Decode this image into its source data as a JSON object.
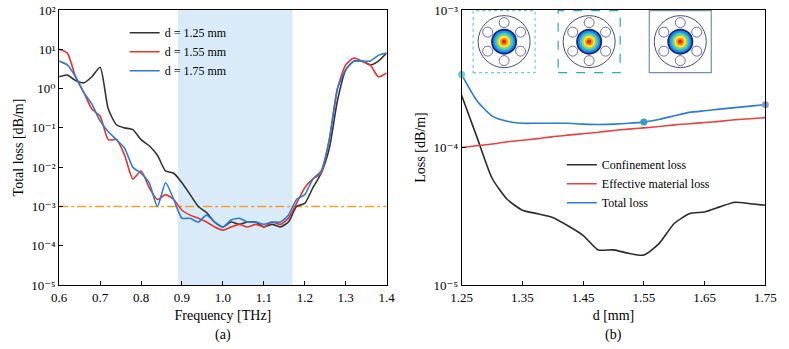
{
  "chart_data": [
    {
      "type": "line",
      "panel_label": "(a)",
      "x_label": "Frequency [THz]",
      "y_label": "Total loss [dB/m]",
      "log": "y",
      "grid": false,
      "legend": "upper left",
      "x": [
        0.6,
        0.62,
        0.64,
        0.66,
        0.68,
        0.7,
        0.72,
        0.74,
        0.76,
        0.78,
        0.8,
        0.82,
        0.84,
        0.86,
        0.88,
        0.9,
        0.92,
        0.94,
        0.96,
        0.98,
        1.0,
        1.02,
        1.04,
        1.06,
        1.08,
        1.1,
        1.12,
        1.14,
        1.16,
        1.18,
        1.2,
        1.22,
        1.24,
        1.26,
        1.28,
        1.3,
        1.32,
        1.34,
        1.36,
        1.38,
        1.4
      ],
      "series": [
        {
          "name": "d = 1.25 mm",
          "color": "#333333",
          "line_style": "solid",
          "values": [
            2,
            2.2,
            1.6,
            1.4,
            2,
            3.5,
            0.3,
            0.12,
            0.1,
            0.09,
            0.05,
            0.035,
            0.02,
            0.008,
            0.007,
            0.004,
            0.002,
            0.001,
            0.0007,
            0.0004,
            0.0003,
            0.0004,
            0.00035,
            0.0004,
            0.0004,
            0.0003,
            0.00035,
            0.0003,
            0.0004,
            0.001,
            0.0012,
            0.003,
            0.007,
            0.03,
            0.5,
            3,
            5,
            5,
            4,
            5,
            8
          ]
        },
        {
          "name": "d = 1.55 mm",
          "color": "#e8322c",
          "line_style": "solid",
          "values": [
            10,
            8,
            2,
            0.8,
            0.3,
            0.2,
            0.05,
            0.05,
            0.02,
            0.005,
            0.008,
            0.003,
            0.0015,
            0.002,
            0.0015,
            0.0008,
            0.0006,
            0.0005,
            0.0004,
            0.0003,
            0.00025,
            0.0003,
            0.00035,
            0.0003,
            0.00035,
            0.0003,
            0.0004,
            0.00035,
            0.0005,
            0.0012,
            0.003,
            0.005,
            0.007,
            0.05,
            1,
            4,
            6,
            5,
            4,
            2,
            2.5
          ]
        },
        {
          "name": "d = 1.75 mm",
          "color": "#2a7bd5",
          "line_style": "solid",
          "values": [
            5,
            4,
            2,
            0.8,
            0.4,
            0.15,
            0.08,
            0.05,
            0.03,
            0.01,
            0.007,
            0.004,
            0.001,
            0.004,
            0.0015,
            0.0005,
            0.0005,
            0.0004,
            0.0006,
            0.0004,
            0.0003,
            0.00045,
            0.0005,
            0.0004,
            0.0004,
            0.00035,
            0.0004,
            0.0004,
            0.0006,
            0.0015,
            0.002,
            0.005,
            0.008,
            0.05,
            1,
            3,
            5,
            5,
            5,
            7,
            8
          ]
        }
      ],
      "xlim": [
        0.6,
        1.4
      ],
      "xticks": [
        0.6,
        0.7,
        0.8,
        0.9,
        {
          "value": 1,
          "label": "1.0"
        },
        1.1,
        1.2,
        1.3,
        1.4
      ],
      "ylim": [
        1e-05,
        100
      ],
      "yticks": [
        {
          "value": 1e-05,
          "label": "10⁻⁵"
        },
        {
          "value": 0.0001,
          "label": "10⁻⁴"
        },
        {
          "value": 0.001,
          "label": "10⁻³"
        },
        {
          "value": 0.01,
          "label": "10⁻²"
        },
        {
          "value": 0.1,
          "label": "10⁻¹"
        },
        {
          "value": 1,
          "label": "10⁰"
        },
        {
          "value": 10,
          "label": "10¹"
        },
        {
          "value": 100,
          "label": "10²"
        }
      ],
      "shaded_band": {
        "x": [
          0.89,
          1.17
        ],
        "color": "#d9ebf9"
      },
      "reference_line": {
        "y": 0.001,
        "color": "#f5a02a",
        "line_style": "dashdot"
      }
    },
    {
      "type": "line",
      "panel_label": "(b)",
      "x_label": "d [mm]",
      "y_label": "Loss [dB/m]",
      "log": "y",
      "grid": false,
      "legend": "center",
      "x": [
        1.25,
        1.275,
        1.3,
        1.325,
        1.35,
        1.375,
        1.4,
        1.425,
        1.45,
        1.475,
        1.5,
        1.525,
        1.55,
        1.575,
        1.6,
        1.625,
        1.65,
        1.675,
        1.7,
        1.725,
        1.75
      ],
      "series": [
        {
          "name": "Confinement loss",
          "color": "#2b2b2b",
          "line_style": "solid",
          "values": [
            0.00024,
            0.00012,
            6e-05,
            4.2e-05,
            3.5e-05,
            3.3e-05,
            3.1e-05,
            2.7e-05,
            2.3e-05,
            1.8e-05,
            1.8e-05,
            1.7e-05,
            1.65e-05,
            2e-05,
            2.8e-05,
            3.3e-05,
            3.4e-05,
            3.7e-05,
            4e-05,
            3.9e-05,
            3.8e-05
          ]
        },
        {
          "name": "Effective material loss",
          "color": "#e84040",
          "line_style": "solid",
          "values": [
            0.0001,
            0.000103,
            0.000106,
            0.00011,
            0.000113,
            0.000116,
            0.00012,
            0.000123,
            0.000126,
            0.000129,
            0.000133,
            0.000136,
            0.000139,
            0.000142,
            0.000146,
            0.000149,
            0.000152,
            0.000155,
            0.000159,
            0.000162,
            0.000165
          ]
        },
        {
          "name": "Total loss",
          "color": "#2a7bd5",
          "line_style": "solid",
          "values": [
            0.00034,
            0.00022,
            0.00017,
            0.000155,
            0.00015,
            0.00015,
            0.00015,
            0.00015,
            0.000148,
            0.000147,
            0.000148,
            0.00015,
            0.000153,
            0.00016,
            0.00017,
            0.00018,
            0.000185,
            0.00019,
            0.000195,
            0.0002,
            0.000205
          ]
        }
      ],
      "highlighted_points": {
        "x": [
          1.25,
          1.55,
          1.75
        ],
        "values": [
          0.00034,
          0.000153,
          0.000205
        ],
        "colors": [
          "#5fd0d8",
          "#3a9cc4",
          "#7f9cc4"
        ]
      },
      "xlim": [
        1.25,
        1.75
      ],
      "xticks": [
        1.25,
        1.35,
        1.45,
        1.55,
        1.65,
        1.75
      ],
      "ylim": [
        1e-05,
        0.001
      ],
      "yticks": [
        {
          "value": 1e-05,
          "label": "10⁻⁵"
        },
        {
          "value": 0.0001,
          "label": "10⁻⁴"
        },
        {
          "value": 0.001,
          "label": "10⁻³"
        }
      ]
    }
  ]
}
